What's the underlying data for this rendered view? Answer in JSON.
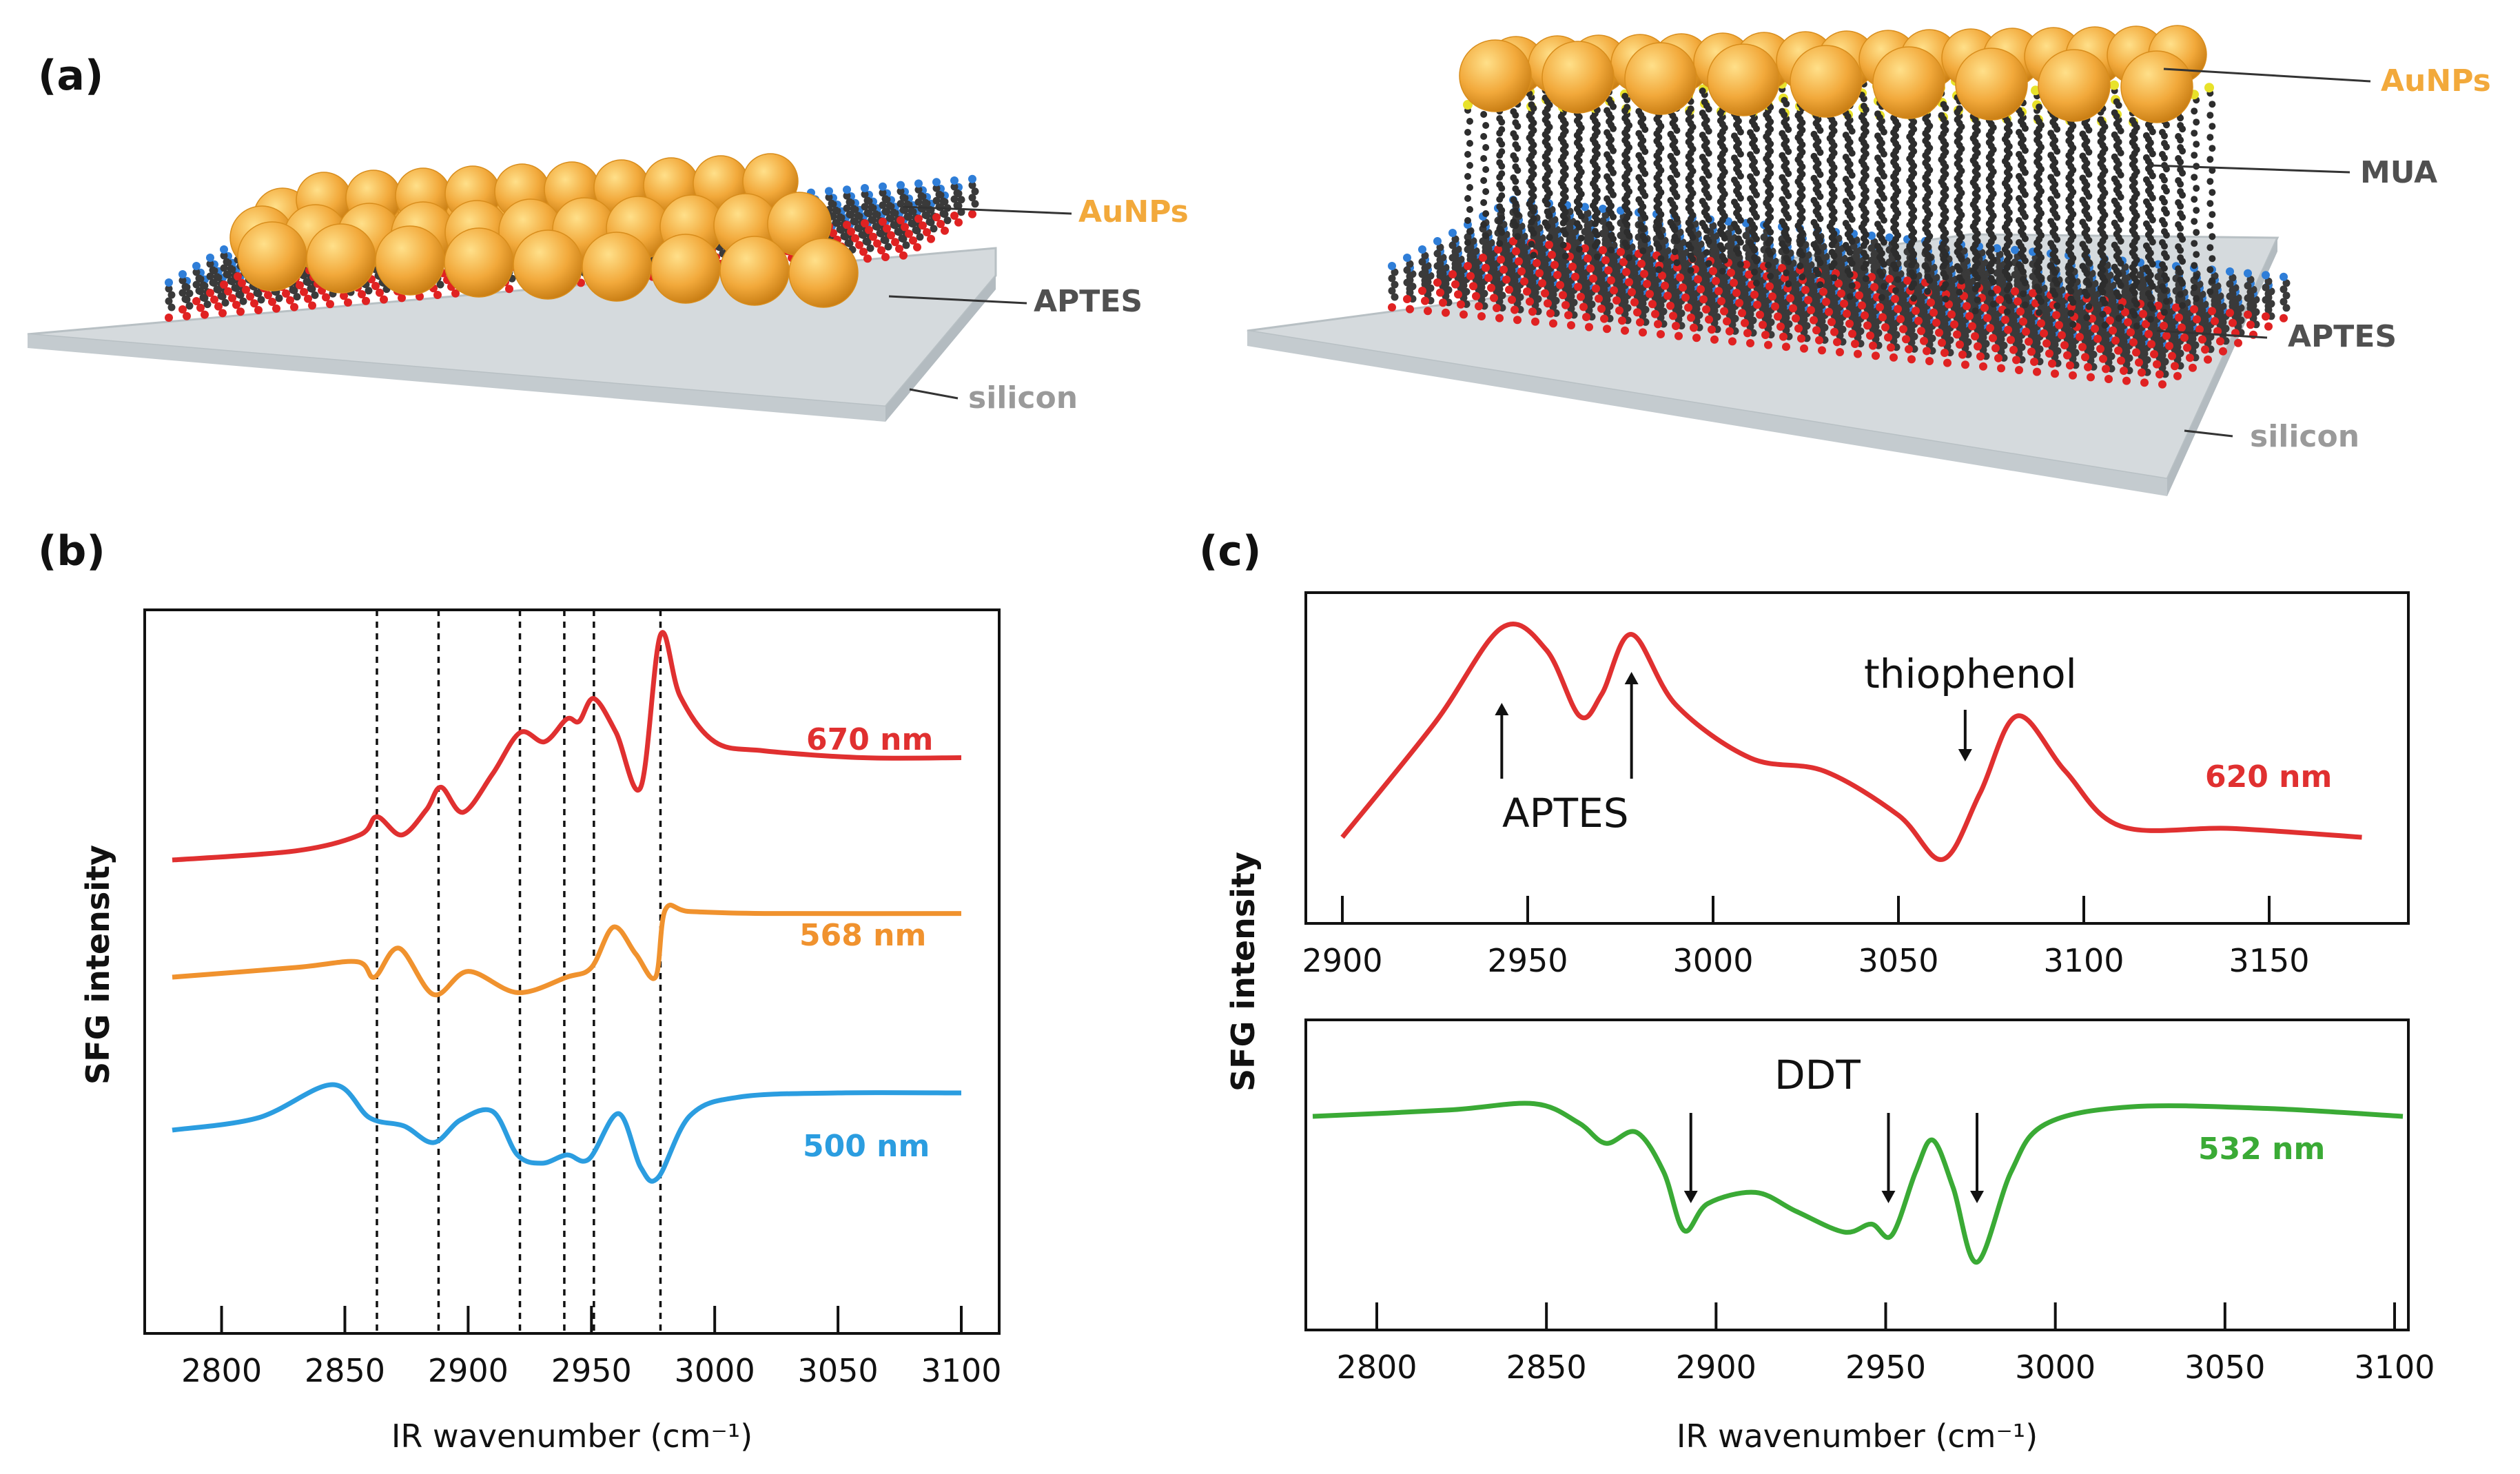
{
  "panels": {
    "a": {
      "label": "(a)"
    },
    "b": {
      "label": "(b)"
    },
    "c": {
      "label": "(c)"
    }
  },
  "schematic_left": {
    "labels": [
      "AuNPs",
      "APTES",
      "silicon"
    ]
  },
  "schematic_right": {
    "labels": [
      "AuNPs",
      "MUA",
      "APTES",
      "silicon"
    ]
  },
  "colors": {
    "gold": "#f2a93b",
    "red": "#e03030",
    "orange": "#f0922e",
    "blue": "#2b9de0",
    "green": "#3aaa35",
    "dark": "#505050",
    "gray": "#9a9a9a"
  },
  "chart_data": [
    {
      "id": "b",
      "type": "line",
      "title": "",
      "xlabel": "IR wavenumber (cm⁻¹)",
      "ylabel": "SFG intensity",
      "xlim": [
        2780,
        3100
      ],
      "xticks": [
        "2800",
        "2850",
        "2900",
        "2950",
        "3000",
        "3050",
        "3100"
      ],
      "vlines": [
        2863,
        2888,
        2921,
        2939,
        2951,
        2978
      ],
      "series": [
        {
          "name": "670 nm",
          "color": "#e03030",
          "baseline": 0.835,
          "height": 0.0,
          "keypoints": [
            [
              2780,
              0.0
            ],
            [
              2830,
              0.04
            ],
            [
              2856,
              0.11
            ],
            [
              2863,
              0.19
            ],
            [
              2873,
              0.11
            ],
            [
              2883,
              0.22
            ],
            [
              2889,
              0.32
            ],
            [
              2898,
              0.21
            ],
            [
              2910,
              0.38
            ],
            [
              2921,
              0.56
            ],
            [
              2931,
              0.52
            ],
            [
              2940,
              0.62
            ],
            [
              2945,
              0.61
            ],
            [
              2951,
              0.71
            ],
            [
              2960,
              0.56
            ],
            [
              2970,
              0.32
            ],
            [
              2978,
              0.99
            ],
            [
              2986,
              0.72
            ],
            [
              3000,
              0.52
            ],
            [
              3020,
              0.48
            ],
            [
              3060,
              0.45
            ],
            [
              3100,
              0.45
            ]
          ]
        },
        {
          "name": "568 nm",
          "color": "#f0922e",
          "keypoints": [
            [
              2780,
              0.0
            ],
            [
              2830,
              0.05
            ],
            [
              2855,
              0.08
            ],
            [
              2862,
              0.0
            ],
            [
              2872,
              0.15
            ],
            [
              2886,
              -0.09
            ],
            [
              2900,
              0.03
            ],
            [
              2920,
              -0.08
            ],
            [
              2940,
              0.0
            ],
            [
              2950,
              0.05
            ],
            [
              2959,
              0.26
            ],
            [
              2968,
              0.12
            ],
            [
              2976,
              0.0
            ],
            [
              2980,
              0.35
            ],
            [
              2990,
              0.34
            ],
            [
              3020,
              0.33
            ],
            [
              3100,
              0.33
            ]
          ]
        },
        {
          "name": "500 nm",
          "color": "#2b9de0",
          "keypoints": [
            [
              2780,
              0.0
            ],
            [
              2815,
              0.06
            ],
            [
              2845,
              0.22
            ],
            [
              2860,
              0.06
            ],
            [
              2874,
              0.02
            ],
            [
              2886,
              -0.06
            ],
            [
              2897,
              0.05
            ],
            [
              2910,
              0.09
            ],
            [
              2920,
              -0.12
            ],
            [
              2930,
              -0.16
            ],
            [
              2940,
              -0.12
            ],
            [
              2949,
              -0.14
            ],
            [
              2961,
              0.08
            ],
            [
              2970,
              -0.18
            ],
            [
              2977,
              -0.23
            ],
            [
              2990,
              0.07
            ],
            [
              3010,
              0.16
            ],
            [
              3050,
              0.18
            ],
            [
              3100,
              0.18
            ]
          ]
        }
      ]
    },
    {
      "id": "c-top",
      "type": "line",
      "xlabel": "",
      "ylabel": "SFG intensity",
      "xlim": [
        2895,
        3175
      ],
      "xticks": [
        "2900",
        "2950",
        "3000",
        "3050",
        "3100",
        "3150"
      ],
      "series": [
        {
          "name": "620 nm",
          "color": "#e03030",
          "keypoints": [
            [
              2900,
              0.0
            ],
            [
              2925,
              0.52
            ],
            [
              2943,
              0.95
            ],
            [
              2955,
              0.85
            ],
            [
              2964,
              0.55
            ],
            [
              2970,
              0.65
            ],
            [
              2978,
              0.92
            ],
            [
              2990,
              0.6
            ],
            [
              3010,
              0.36
            ],
            [
              3030,
              0.3
            ],
            [
              3050,
              0.1
            ],
            [
              3062,
              -0.1
            ],
            [
              3072,
              0.2
            ],
            [
              3082,
              0.55
            ],
            [
              3095,
              0.3
            ],
            [
              3110,
              0.05
            ],
            [
              3140,
              0.04
            ],
            [
              3175,
              0.0
            ]
          ]
        }
      ],
      "annotations": [
        {
          "text": "APTES",
          "x": [
            2943,
            2978
          ]
        },
        {
          "text": "thiophenol",
          "x": [
            3068
          ]
        }
      ]
    },
    {
      "id": "c-bottom",
      "type": "line",
      "xlabel": "IR wavenumber (cm⁻¹)",
      "xlim": [
        2780,
        3100
      ],
      "xticks": [
        "2800",
        "2850",
        "2900",
        "2950",
        "3000",
        "3050",
        "3100"
      ],
      "series": [
        {
          "name": "532 nm",
          "color": "#3aaa35",
          "keypoints": [
            [
              2780,
              0.0
            ],
            [
              2820,
              0.04
            ],
            [
              2845,
              0.08
            ],
            [
              2858,
              -0.04
            ],
            [
              2866,
              -0.17
            ],
            [
              2875,
              -0.1
            ],
            [
              2883,
              -0.35
            ],
            [
              2889,
              -0.72
            ],
            [
              2896,
              -0.55
            ],
            [
              2910,
              -0.48
            ],
            [
              2922,
              -0.6
            ],
            [
              2936,
              -0.73
            ],
            [
              2944,
              -0.68
            ],
            [
              2950,
              -0.75
            ],
            [
              2957,
              -0.35
            ],
            [
              2962,
              -0.15
            ],
            [
              2968,
              -0.45
            ],
            [
              2975,
              -0.92
            ],
            [
              2985,
              -0.35
            ],
            [
              2995,
              -0.05
            ],
            [
              3020,
              0.06
            ],
            [
              3060,
              0.05
            ],
            [
              3100,
              0.0
            ]
          ]
        }
      ],
      "annotations": [
        {
          "text": "DDT",
          "x": [
            2891,
            2949,
            2975
          ]
        }
      ]
    }
  ]
}
